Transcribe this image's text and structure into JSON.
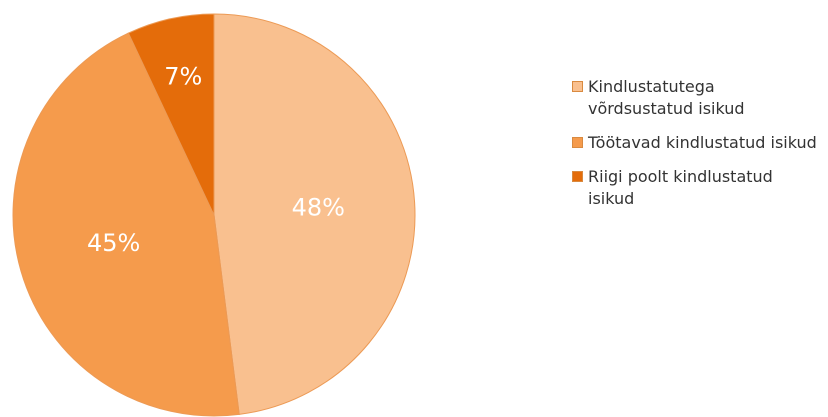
{
  "chart_data": {
    "type": "pie",
    "categories": [
      "Kindlustatutega võrdsustatud isikud",
      "Töötavad kindlustatud isikud",
      "Riigi poolt kindlustatud isikud"
    ],
    "values": [
      48,
      45,
      7
    ],
    "value_labels": [
      "48%",
      "45%",
      "7%"
    ],
    "colors": [
      "#f9c08f",
      "#f59b4c",
      "#e46c0a"
    ],
    "legend": "right"
  }
}
